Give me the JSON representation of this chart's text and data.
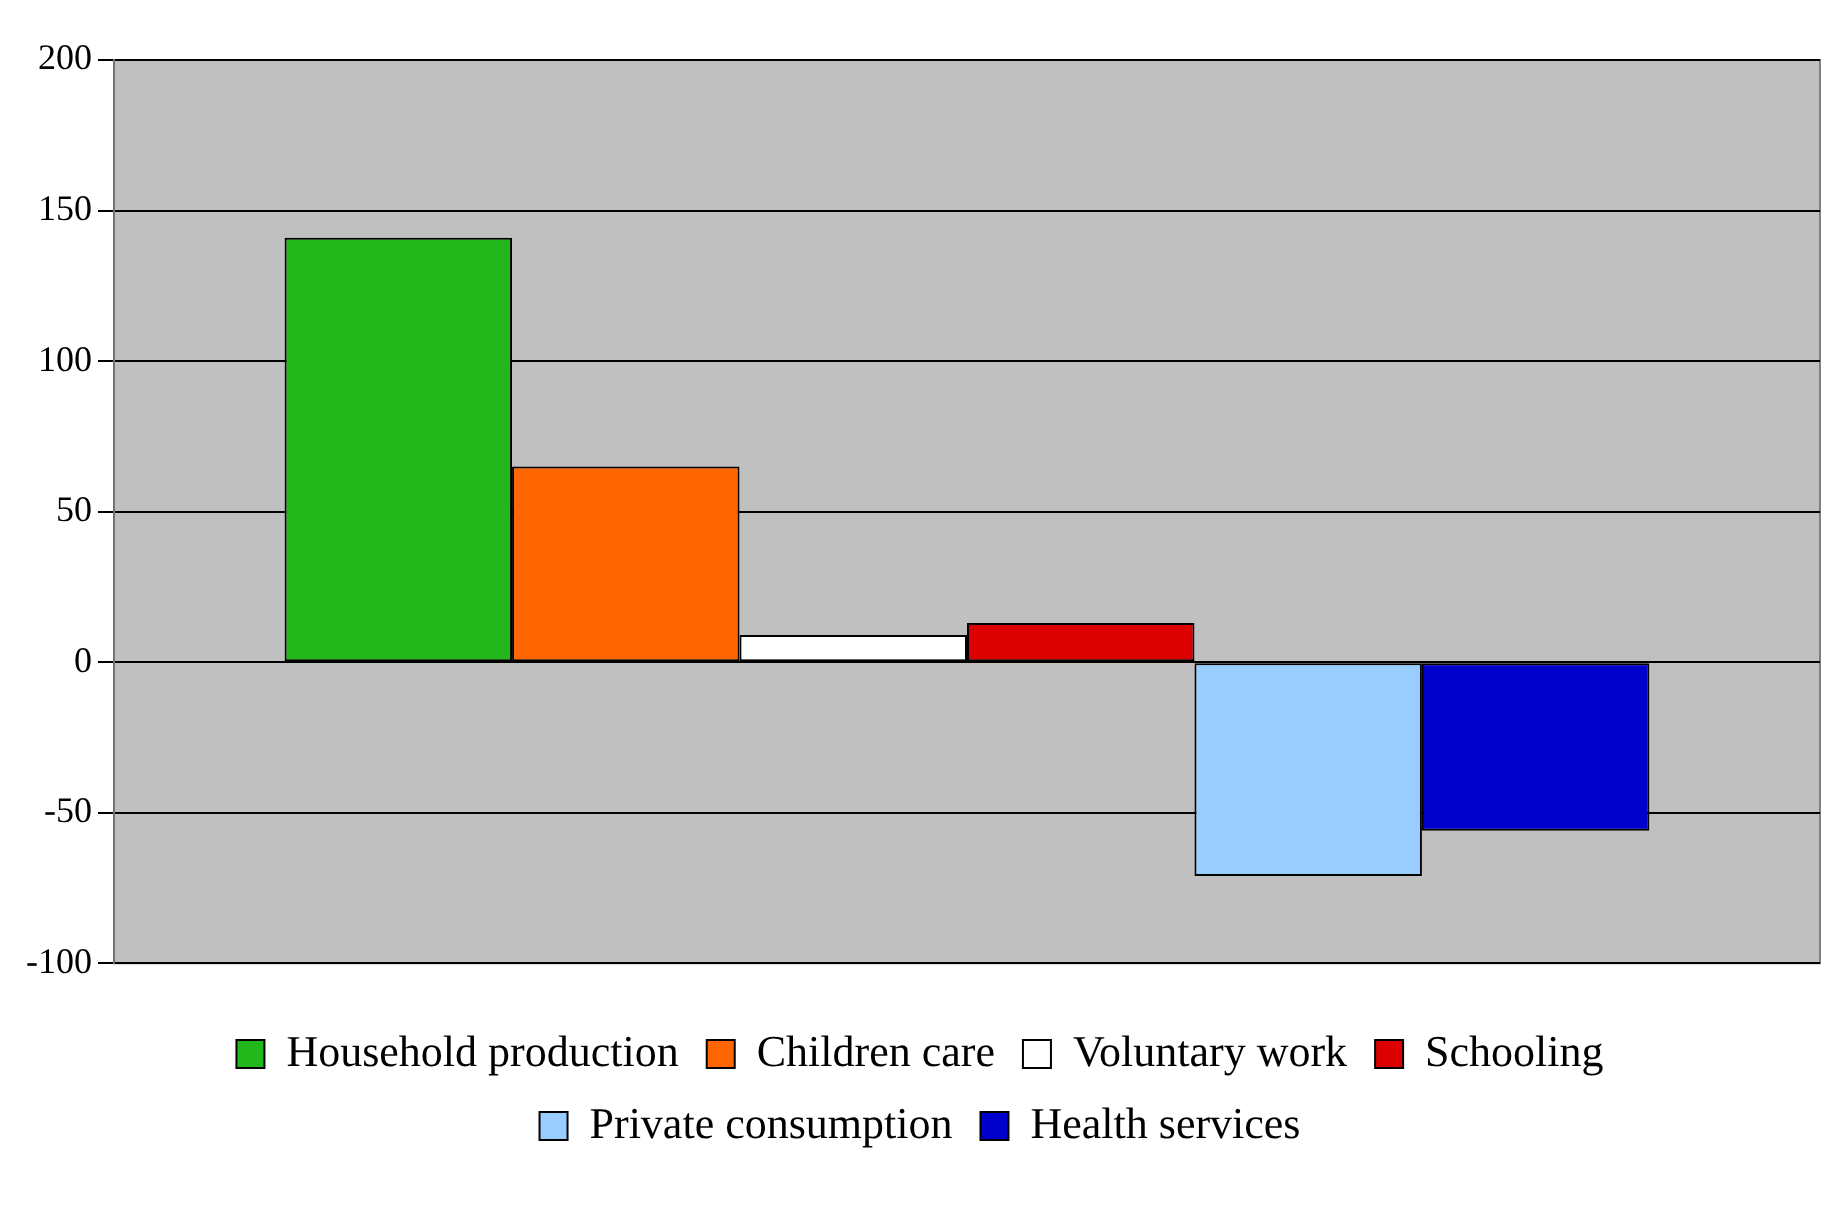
{
  "chart_data": {
    "type": "bar",
    "categories": [
      null
    ],
    "series": [
      {
        "name": "Household production",
        "color": "#22b81b",
        "values": [
          141
        ]
      },
      {
        "name": "Children care",
        "color": "#ff6600",
        "values": [
          65
        ]
      },
      {
        "name": "Voluntary work",
        "color": "#ffffff",
        "values": [
          9
        ]
      },
      {
        "name": "Schooling",
        "color": "#dd0000",
        "values": [
          13
        ]
      },
      {
        "name": "Private consumption",
        "color": "#99ccff",
        "values": [
          -71
        ]
      },
      {
        "name": "Health services",
        "color": "#0000cc",
        "values": [
          -56
        ]
      }
    ],
    "ylim": [
      -100,
      200
    ],
    "yticks": [
      -100,
      -50,
      0,
      50,
      100,
      150,
      200
    ],
    "grid": "y",
    "legend": "bottom"
  }
}
